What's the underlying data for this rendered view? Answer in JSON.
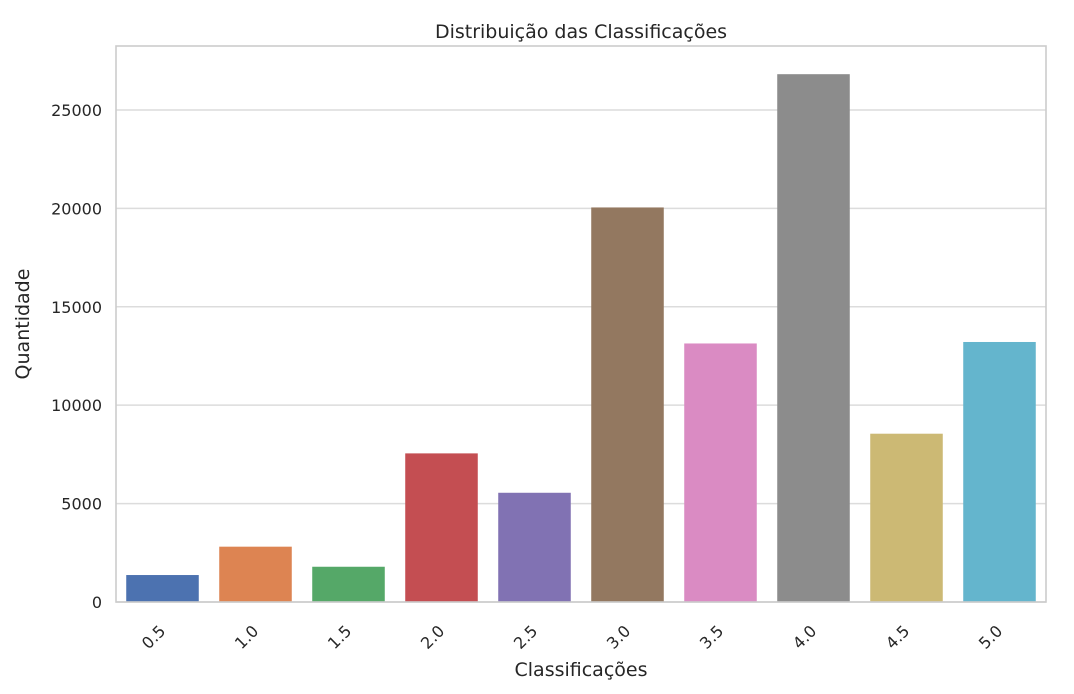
{
  "chart_data": {
    "type": "bar",
    "title": "Distribuição das Classificações",
    "xlabel": "Classificações",
    "ylabel": "Quantidade",
    "categories": [
      "0.5",
      "1.0",
      "1.5",
      "2.0",
      "2.5",
      "3.0",
      "3.5",
      "4.0",
      "4.5",
      "5.0"
    ],
    "values": [
      1370,
      2811,
      1791,
      7551,
      5550,
      20047,
      13136,
      26818,
      8551,
      13211
    ],
    "colors": [
      "#4c72b0",
      "#dd8452",
      "#55a868",
      "#c44e52",
      "#8172b3",
      "#937860",
      "#da8bc3",
      "#8c8c8c",
      "#ccb974",
      "#64b5cd"
    ],
    "ylim": [
      0,
      28250
    ],
    "yticks": [
      0,
      5000,
      10000,
      15000,
      20000,
      25000
    ],
    "grid": "horizontal"
  }
}
